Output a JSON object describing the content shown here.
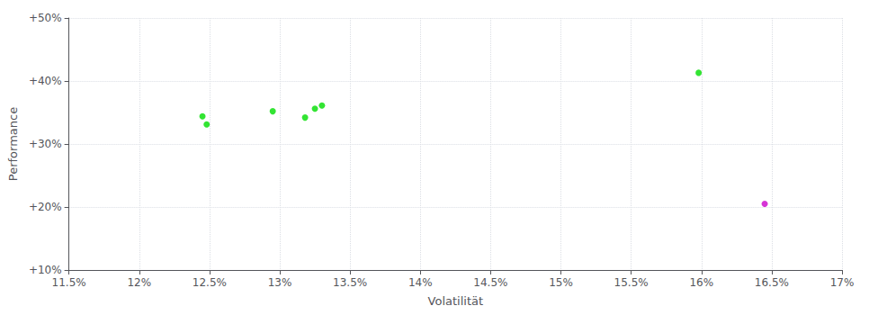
{
  "chart_data": {
    "type": "scatter",
    "xlabel": "Volatilität",
    "ylabel": "Performance",
    "series": [
      {
        "color": "#00dd00",
        "x": [
          0.1245,
          0.1248,
          0.1295,
          0.1318,
          0.1325,
          0.133,
          0.1598
        ],
        "values": [
          0.344,
          0.331,
          0.352,
          0.342,
          0.356,
          0.361,
          0.413
        ]
      },
      {
        "color": "#cc00cc",
        "x": [
          0.1645
        ],
        "values": [
          0.205
        ]
      }
    ],
    "xlim": [
      0.115,
      0.17
    ],
    "xticks": [
      {
        "value": 0.115,
        "label": "11.5%"
      },
      {
        "value": 0.12,
        "label": "12%"
      },
      {
        "value": 0.125,
        "label": "12.5%"
      },
      {
        "value": 0.13,
        "label": "13%"
      },
      {
        "value": 0.135,
        "label": "13.5%"
      },
      {
        "value": 0.14,
        "label": "14%"
      },
      {
        "value": 0.145,
        "label": "14.5%"
      },
      {
        "value": 0.15,
        "label": "15%"
      },
      {
        "value": 0.155,
        "label": "15.5%"
      },
      {
        "value": 0.16,
        "label": "16%"
      },
      {
        "value": 0.165,
        "label": "16.5%"
      },
      {
        "value": 0.17,
        "label": "17%"
      }
    ],
    "ylim": [
      0.1,
      0.5
    ],
    "yticks": [
      {
        "value": 0.1,
        "label": "+10%"
      },
      {
        "value": 0.2,
        "label": "+20%"
      },
      {
        "value": 0.3,
        "label": "+30%"
      },
      {
        "value": 0.4,
        "label": "+40%"
      },
      {
        "value": 0.5,
        "label": "+50%"
      }
    ],
    "grid": true
  }
}
